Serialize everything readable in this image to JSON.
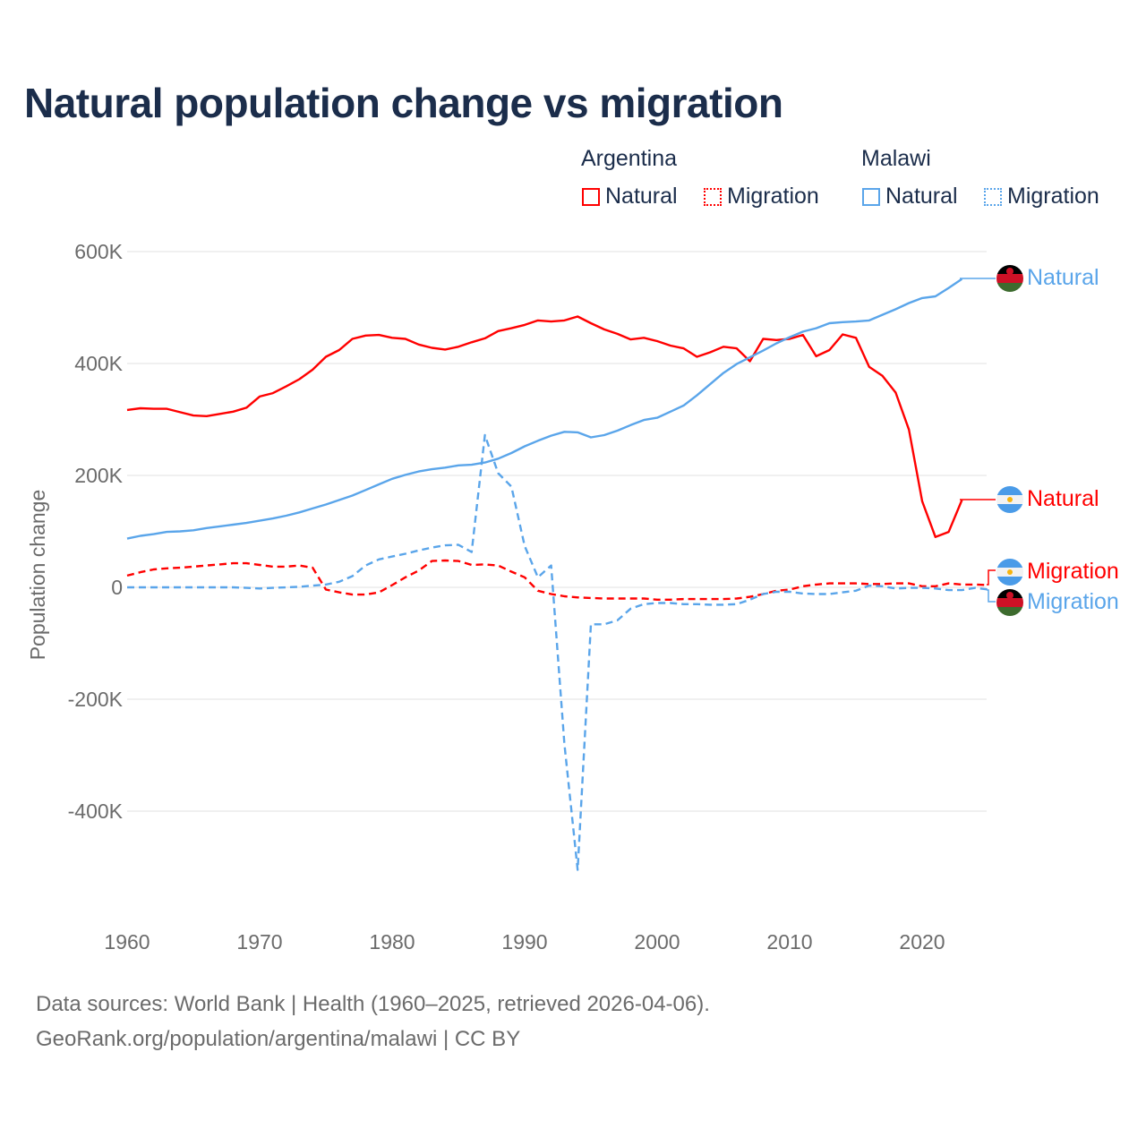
{
  "title": "Natural population change vs migration",
  "legend": {
    "groups": [
      {
        "name": "Argentina",
        "items": [
          {
            "label": "Natural",
            "style": "solid"
          },
          {
            "label": "Migration",
            "style": "dotted"
          }
        ],
        "color": "#ff0000"
      },
      {
        "name": "Malawi",
        "items": [
          {
            "label": "Natural",
            "style": "solid"
          },
          {
            "label": "Migration",
            "style": "dotted"
          }
        ],
        "color": "#5aa5ea"
      }
    ]
  },
  "end_labels": {
    "malawi_natural": "Natural",
    "argentina_natural": "Natural",
    "argentina_migration": "Migration",
    "malawi_migration": "Migration"
  },
  "footer": {
    "line1": "Data sources: World Bank | Health (1960–2025, retrieved 2026-04-06).",
    "line2": "GeoRank.org/population/argentina/malawi | CC BY"
  },
  "chart_data": {
    "type": "line",
    "title": "Natural population change vs migration",
    "xlabel": "",
    "ylabel": "Population change",
    "xlim": [
      1960,
      2025
    ],
    "ylim": [
      -550000,
      620000
    ],
    "x_ticks": [
      1960,
      1970,
      1980,
      1990,
      2000,
      2010,
      2020
    ],
    "x_tick_labels": [
      "1960",
      "1970",
      "1980",
      "1990",
      "2000",
      "2010",
      "2020"
    ],
    "y_ticks": [
      600000,
      400000,
      200000,
      0,
      -200000,
      -400000
    ],
    "y_tick_labels": [
      "600K",
      "400K",
      "200K",
      "0",
      "-200K",
      "-400K"
    ],
    "grid": true,
    "legend_position": "top-right",
    "series": [
      {
        "name": "Argentina Natural",
        "country": "Argentina",
        "kind": "Natural",
        "color": "#ff0000",
        "dash": "solid",
        "start_year": 1960,
        "values_k": [
          317,
          320,
          319,
          319,
          313,
          307,
          306,
          310,
          314,
          321,
          341,
          347,
          359,
          372,
          389,
          412,
          424,
          444,
          450,
          451,
          446,
          444,
          434,
          428,
          425,
          430,
          438,
          445,
          458,
          463,
          469,
          477,
          475,
          477,
          484,
          472,
          461,
          453,
          443,
          446,
          440,
          432,
          427,
          412,
          420,
          430,
          427,
          404,
          444,
          442,
          444,
          451,
          413,
          424,
          452,
          446,
          394,
          378,
          348,
          282,
          154,
          90,
          99,
          156
        ]
      },
      {
        "name": "Argentina Migration",
        "country": "Argentina",
        "kind": "Migration",
        "color": "#ff0000",
        "dash": "dashed",
        "start_year": 1960,
        "values_k": [
          21,
          27,
          32,
          34,
          35,
          37,
          39,
          41,
          43,
          43,
          40,
          37,
          37,
          39,
          35,
          -4,
          -9,
          -13,
          -13,
          -9,
          4,
          18,
          30,
          47,
          48,
          47,
          40,
          41,
          39,
          28,
          18,
          -6,
          -12,
          -16,
          -18,
          -19,
          -20,
          -20,
          -20,
          -20,
          -22,
          -22,
          -21,
          -21,
          -21,
          -21,
          -20,
          -17,
          -12,
          -6,
          -4,
          2,
          5,
          7,
          7,
          7,
          6,
          6,
          7,
          7,
          2,
          2,
          7,
          5,
          5,
          4
        ]
      },
      {
        "name": "Malawi Natural",
        "country": "Malawi",
        "kind": "Natural",
        "color": "#5aa5ea",
        "dash": "solid",
        "start_year": 1960,
        "values_k": [
          87,
          92,
          95,
          99,
          100,
          102,
          106,
          109,
          112,
          115,
          119,
          123,
          128,
          134,
          141,
          148,
          156,
          164,
          174,
          184,
          194,
          201,
          207,
          211,
          214,
          218,
          219,
          223,
          230,
          240,
          252,
          262,
          271,
          278,
          277,
          268,
          272,
          280,
          290,
          299,
          303,
          314,
          325,
          343,
          363,
          383,
          399,
          411,
          423,
          436,
          447,
          457,
          463,
          472,
          474,
          475,
          477,
          487,
          497,
          508,
          517,
          520,
          535,
          551
        ]
      },
      {
        "name": "Malawi Migration",
        "country": "Malawi",
        "kind": "Migration",
        "color": "#5aa5ea",
        "dash": "dashed",
        "start_year": 1960,
        "values_k": [
          0,
          0,
          0,
          0,
          0,
          0,
          0,
          0,
          0,
          -1,
          -2,
          -1,
          0,
          1,
          3,
          5,
          10,
          20,
          39,
          50,
          55,
          60,
          66,
          71,
          75,
          76,
          63,
          272,
          204,
          180,
          74,
          18,
          39,
          -280,
          -505,
          -66,
          -66,
          -59,
          -38,
          -30,
          -28,
          -28,
          -30,
          -30,
          -31,
          -31,
          -30,
          -22,
          -12,
          -8,
          -8,
          -11,
          -12,
          -12,
          -9,
          -6,
          3,
          2,
          -2,
          -1,
          -1,
          -2,
          -5,
          -5,
          -1,
          -4
        ]
      }
    ]
  }
}
